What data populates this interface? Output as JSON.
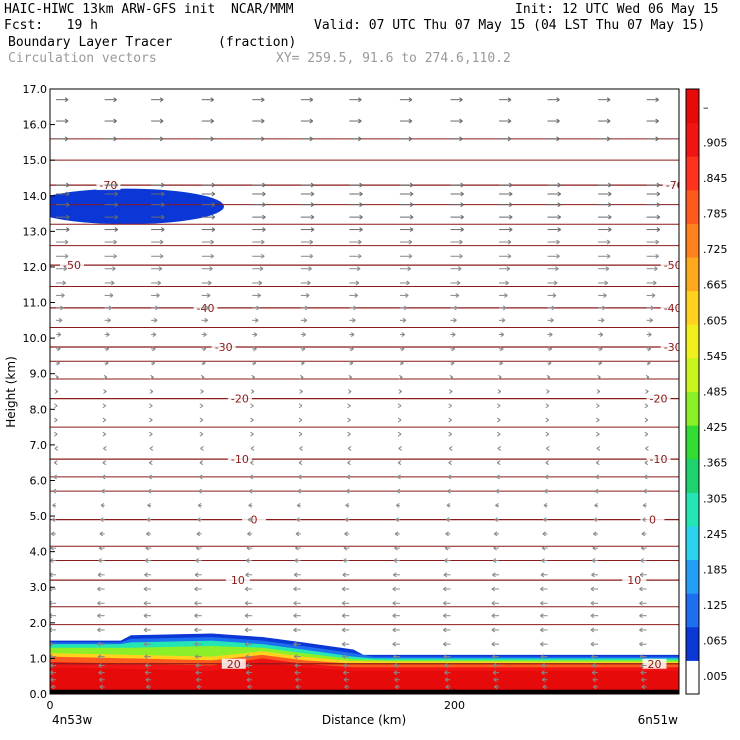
{
  "header": {
    "model_line": "HAIC-HIWC 13km ARW-GFS init  NCAR/MMM",
    "init_line": "Init: 12 UTC Wed 06 May 15",
    "fcst_line": "Fcst:   19 h",
    "valid_line": "Valid: 07 UTC Thu 07 May 15 (04 LST Thu 07 May 15)",
    "field_name": "Boundary Layer Tracer",
    "field_units": "(fraction)",
    "overlay_name": "Circulation vectors",
    "xsec_coords": "XY= 259.5, 91.6 to 274.6,110.2"
  },
  "chart_data": {
    "type": "heatmap",
    "title": "Boundary Layer Tracer (fraction)",
    "xlabel": "Distance (km)",
    "ylabel": "Height (km)",
    "xlim": [
      0,
      311
    ],
    "ylim": [
      0,
      17
    ],
    "x_ticks": [
      {
        "value": 0,
        "label": "0"
      },
      {
        "value": 200,
        "label": "200"
      }
    ],
    "x_end_labels": {
      "left": "4n53w",
      "right": "6n51w"
    },
    "y_ticks": [
      0.0,
      1.0,
      2.0,
      3.0,
      4.0,
      5.0,
      6.0,
      7.0,
      8.0,
      9.0,
      10.0,
      11.0,
      12.0,
      13.0,
      14.0,
      15.0,
      16.0,
      17.0
    ],
    "y_tick_labels": [
      "0.0",
      "1.0",
      "2.0",
      "3.0",
      "4.0",
      "5.0",
      "6.0",
      "7.0",
      "8.0",
      "9.0",
      "10.0",
      "11.0",
      "12.0",
      "13.0",
      "14.0",
      "15.0",
      "16.0",
      "17.0"
    ],
    "colorbar": {
      "labels": [
        ".005",
        ".065",
        ".125",
        ".185",
        ".245",
        ".305",
        ".365",
        ".425",
        ".485",
        ".545",
        ".605",
        ".665",
        ".725",
        ".785",
        ".845",
        ".905",
        "–"
      ],
      "colors": [
        "#ffffff",
        "#0a37d6",
        "#1e6ef0",
        "#23a0f5",
        "#2cd2ee",
        "#24e6b4",
        "#1ed26e",
        "#32dc32",
        "#8cf028",
        "#c8f51e",
        "#f0f01e",
        "#ffd21e",
        "#ffaa1e",
        "#ff821e",
        "#ff5a1e",
        "#ff321e",
        "#f01414",
        "#e60a0a"
      ]
    },
    "tracer_field": {
      "upper_patch": {
        "x_range": [
          0,
          86
        ],
        "height_center_km": 13.7,
        "half_thickness_km": 0.5,
        "value": 0.05
      },
      "boundary_layer_top_km": [
        {
          "x": 0,
          "top": 1.5
        },
        {
          "x": 35,
          "top": 1.5
        },
        {
          "x": 40,
          "top": 1.65
        },
        {
          "x": 80,
          "top": 1.7
        },
        {
          "x": 105,
          "top": 1.6
        },
        {
          "x": 125,
          "top": 1.45
        },
        {
          "x": 150,
          "top": 1.25
        },
        {
          "x": 155,
          "top": 1.1
        },
        {
          "x": 311,
          "top": 1.1
        }
      ],
      "layers": [
        {
          "value": 0.065,
          "x_top": [
            [
              0,
              1.45
            ],
            [
              35,
              1.45
            ],
            [
              40,
              1.55
            ],
            [
              80,
              1.6
            ],
            [
              105,
              1.5
            ],
            [
              125,
              1.35
            ],
            [
              150,
              1.15
            ],
            [
              160,
              1.05
            ],
            [
              311,
              1.05
            ]
          ]
        },
        {
          "value": 0.245,
          "x_top": [
            [
              0,
              1.4
            ],
            [
              35,
              1.4
            ],
            [
              40,
              1.45
            ],
            [
              80,
              1.5
            ],
            [
              105,
              1.4
            ],
            [
              125,
              1.25
            ],
            [
              150,
              1.05
            ],
            [
              160,
              1.0
            ],
            [
              311,
              1.0
            ]
          ]
        },
        {
          "value": 0.425,
          "x_top": [
            [
              0,
              1.3
            ],
            [
              40,
              1.3
            ],
            [
              80,
              1.35
            ],
            [
              105,
              1.3
            ],
            [
              125,
              1.15
            ],
            [
              150,
              0.98
            ],
            [
              165,
              0.95
            ],
            [
              311,
              0.95
            ]
          ]
        },
        {
          "value": 0.605,
          "x_top": [
            [
              0,
              1.15
            ],
            [
              40,
              1.1
            ],
            [
              80,
              1.05
            ],
            [
              105,
              1.2
            ],
            [
              125,
              1.05
            ],
            [
              150,
              0.92
            ],
            [
              311,
              0.9
            ]
          ]
        },
        {
          "value": 0.785,
          "x_top": [
            [
              0,
              1.05
            ],
            [
              40,
              1.0
            ],
            [
              80,
              0.95
            ],
            [
              105,
              1.1
            ],
            [
              125,
              0.95
            ],
            [
              150,
              0.85
            ],
            [
              311,
              0.85
            ]
          ]
        },
        {
          "value": 0.905,
          "x_top": [
            [
              0,
              0.9
            ],
            [
              40,
              0.85
            ],
            [
              80,
              0.8
            ],
            [
              105,
              1.0
            ],
            [
              125,
              0.85
            ],
            [
              150,
              0.75
            ],
            [
              311,
              0.75
            ]
          ]
        },
        {
          "value": 0.965,
          "x_top": [
            [
              0,
              0.75
            ],
            [
              40,
              0.7
            ],
            [
              80,
              0.65
            ],
            [
              105,
              0.9
            ],
            [
              125,
              0.75
            ],
            [
              150,
              0.65
            ],
            [
              311,
              0.65
            ]
          ]
        }
      ]
    },
    "temperature_contours": {
      "units": "deg C",
      "lines": [
        {
          "value": 20,
          "label": "20",
          "height_km": 0.85,
          "label_x": [
            80,
            288
          ]
        },
        {
          "value": 10,
          "label": "10",
          "height_km": 3.2,
          "label_x": [
            82,
            278
          ]
        },
        {
          "value": 0,
          "label": "0",
          "height_km": 4.9,
          "label_x": [
            90,
            287
          ]
        },
        {
          "value": -10,
          "label": "-10",
          "height_km": 6.6,
          "label_x": [
            83,
            290
          ]
        },
        {
          "value": -20,
          "label": "-20",
          "height_km": 8.3,
          "label_x": [
            83,
            290
          ]
        },
        {
          "value": -30,
          "label": "-30",
          "height_km": 9.75,
          "label_x": [
            75,
            297
          ]
        },
        {
          "value": -40,
          "label": "-40",
          "height_km": 10.85,
          "label_x": [
            66,
            297
          ]
        },
        {
          "value": -50,
          "label": "-50",
          "height_km": 12.05,
          "label_x": [
            0,
            297
          ]
        },
        {
          "value": -70,
          "label": "-70",
          "height_km": 14.3,
          "label_x": [
            18,
            298
          ]
        }
      ],
      "unlabeled_heights_km": [
        1.95,
        2.45,
        3.75,
        4.15,
        5.7,
        6.1,
        7.5,
        8.85,
        9.35,
        10.3,
        11.45,
        12.6,
        13.2,
        13.75,
        15.0,
        15.6
      ]
    },
    "circulation_vectors": {
      "x_positions_km": [
        3,
        27,
        50,
        75,
        100,
        124,
        148,
        173,
        198,
        222,
        246,
        271,
        295
      ],
      "rows": [
        {
          "height_km": 16.7,
          "u": 1.0
        },
        {
          "height_km": 16.1,
          "u": 1.0
        },
        {
          "height_km": 15.6,
          "u": 1.0
        },
        {
          "height_km": 14.3,
          "u": 1.1
        },
        {
          "height_km": 14.05,
          "u": 1.1
        },
        {
          "height_km": 13.75,
          "u": 1.1
        },
        {
          "height_km": 13.4,
          "u": 1.1
        },
        {
          "height_km": 13.05,
          "u": 1.1
        },
        {
          "height_km": 12.7,
          "u": 1.0
        },
        {
          "height_km": 12.3,
          "u": 1.0
        },
        {
          "height_km": 11.95,
          "u": 0.9
        },
        {
          "height_km": 11.55,
          "u": 0.8
        },
        {
          "height_km": 11.2,
          "u": 0.7
        },
        {
          "height_km": 10.85,
          "u": 0.6
        },
        {
          "height_km": 10.5,
          "u": 0.5
        },
        {
          "height_km": 10.1,
          "u": 0.4
        },
        {
          "height_km": 9.7,
          "u": 0.35
        },
        {
          "height_km": 9.3,
          "u": 0.3
        },
        {
          "height_km": 8.9,
          "u": 0.2
        },
        {
          "height_km": 8.5,
          "u": 0.15
        },
        {
          "height_km": 8.1,
          "u": 0.1
        },
        {
          "height_km": 7.7,
          "u": 0.1
        },
        {
          "height_km": 7.3,
          "u": 0.1
        },
        {
          "height_km": 6.9,
          "u": -0.1
        },
        {
          "height_km": 6.5,
          "u": -0.15
        },
        {
          "height_km": 6.1,
          "u": -0.2
        },
        {
          "height_km": 5.7,
          "u": -0.25
        },
        {
          "height_km": 5.3,
          "u": -0.3
        },
        {
          "height_km": 4.9,
          "u": -0.35
        },
        {
          "height_km": 4.5,
          "u": -0.4
        },
        {
          "height_km": 4.1,
          "u": -0.45
        },
        {
          "height_km": 3.75,
          "u": -0.5
        },
        {
          "height_km": 3.35,
          "u": -0.55
        },
        {
          "height_km": 2.95,
          "u": -0.6
        },
        {
          "height_km": 2.55,
          "u": -0.6
        },
        {
          "height_km": 2.2,
          "u": -0.6
        },
        {
          "height_km": 1.8,
          "u": -0.6
        },
        {
          "height_km": 1.4,
          "u": -0.6
        },
        {
          "height_km": 1.05,
          "u": -0.55
        },
        {
          "height_km": 0.8,
          "u": -0.5
        },
        {
          "height_km": 0.6,
          "u": -0.5
        },
        {
          "height_km": 0.4,
          "u": -0.45
        },
        {
          "height_km": 0.2,
          "u": -0.4
        }
      ]
    }
  }
}
